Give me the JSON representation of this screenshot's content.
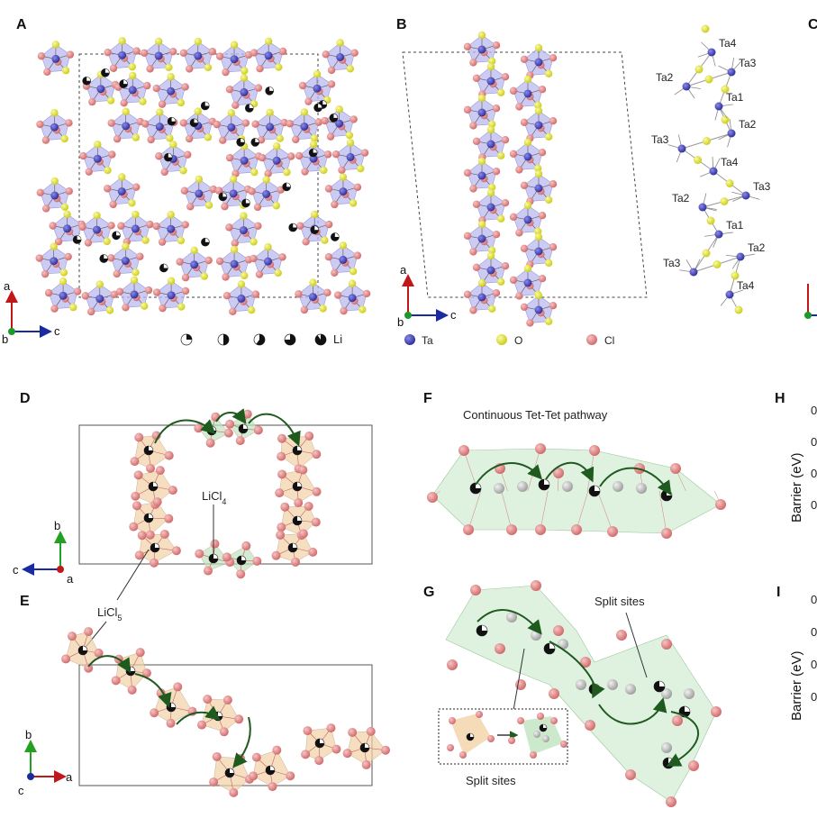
{
  "panels": {
    "A": {
      "label": "A",
      "legend_label": "Li",
      "axes": {
        "up": "a",
        "right": "c",
        "origin": "b"
      }
    },
    "B": {
      "label": "B",
      "axes": {
        "up": "a",
        "right": "c",
        "origin": "b"
      },
      "legend": [
        {
          "name": "Ta",
          "color": "#3f3fb8"
        },
        {
          "name": "O",
          "color": "#e6e62a"
        },
        {
          "name": "Cl",
          "color": "#e08080"
        }
      ],
      "ta_sites": [
        "Ta4",
        "Ta2",
        "Ta3",
        "Ta1",
        "Ta2",
        "Ta3",
        "Ta4",
        "Ta3",
        "Ta2",
        "Ta1",
        "Ta3",
        "Ta2",
        "Ta4"
      ]
    },
    "C": {
      "label": "C"
    },
    "D": {
      "label": "D",
      "annot_tet": "LiCl",
      "annot_tet_sub": "4",
      "axes": {
        "up": "b",
        "left": "c",
        "origin": "a"
      }
    },
    "E": {
      "label": "E",
      "annot_pent": "LiCl",
      "annot_pent_sub": "5",
      "axes": {
        "up": "b",
        "right": "a",
        "origin": "c"
      }
    },
    "F": {
      "label": "F",
      "title": "Continuous Tet-Tet pathway"
    },
    "G": {
      "label": "G",
      "annot_split": "Split sites",
      "inset_label": "Split sites"
    },
    "H": {
      "label": "H",
      "ylabel": "Barrier (eV)",
      "ticks": [
        "0",
        "0",
        "0",
        "0"
      ]
    },
    "I": {
      "label": "I",
      "ylabel": "Barrier (eV)",
      "ticks": [
        "0",
        "0",
        "0",
        "0"
      ]
    }
  },
  "colors": {
    "ta": "#3f3fb8",
    "o": "#e6e62a",
    "cl": "#e08080",
    "li": "#1a1a1a",
    "poly_ta": "#b9b9ef",
    "poly_tet": "#bfe3bf",
    "poly_pent": "#f2d2a6",
    "arrow": "#1f5a1f"
  }
}
